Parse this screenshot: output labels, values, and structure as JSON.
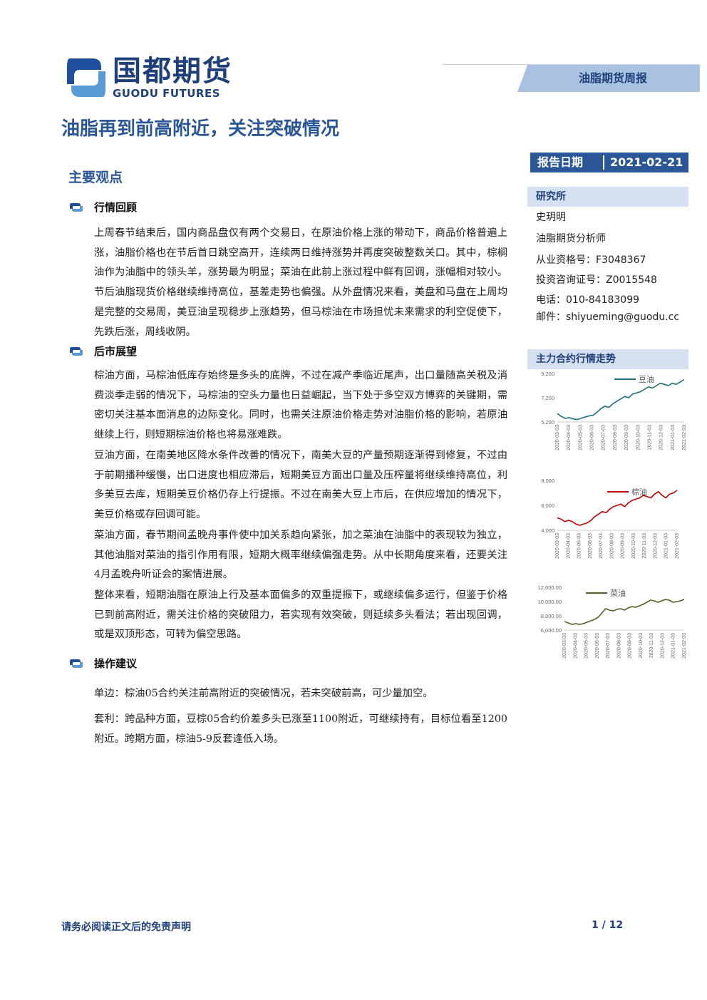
{
  "header": {
    "logo_cn": "国都期货",
    "logo_en": "GUODU FUTURES",
    "tag": "油脂期货周报"
  },
  "title": "油脂再到前高附近，关注突破情况",
  "report_date": {
    "label": "报告日期",
    "value": "2021-02-21"
  },
  "sidebar": {
    "institute_label": "研究所",
    "lines": [
      "史玥明",
      "油脂期货分析师",
      "从业资格号：F3048367",
      "投资咨询证号：Z0015548",
      "电话：010-84183099",
      "邮件：shiyueming@guodu.cc"
    ],
    "charts_label": "主力合约行情走势"
  },
  "main": {
    "section_title": "主要观点",
    "sections": [
      {
        "heading": "行情回顾",
        "paragraphs": [
          "上周春节结束后，国内商品盘仅有两个交易日，在原油价格上涨的带动下，商品价格普遍上涨，油脂价格也在节后首日跳空高开，连续两日维持涨势并再度突破整数关口。其中，棕榈油作为油脂中的领头羊，涨势最为明显；菜油在此前上涨过程中鲜有回调，涨幅相对较小。节后油脂现货价格继续维持高位，基差走势也偏强。从外盘情况来看，美盘和马盘在上周均是完整的交易周，美豆油呈现稳步上涨趋势，但马棕油在市场担忧未来需求的利空促使下，先跌后涨，周线收阴。"
        ]
      },
      {
        "heading": "后市展望",
        "paragraphs": [
          "棕油方面，马棕油低库存始终是多头的底牌，不过在减产季临近尾声，出口量随高关税及消费淡季走弱的情况下，马棕油的空头力量也日益崛起，当下处于多空双方博弈的关键期，需密切关注基本面消息的边际变化。同时，也需关注原油价格走势对油脂价格的影响，若原油继续上行，则短期棕油价格也将易涨难跌。",
          "豆油方面，在南美地区降水条件改善的情况下，南美大豆的产量预期逐渐得到修复，不过由于前期播种缓慢，出口进度也相应滞后，短期美豆方面出口量及压榨量将继续维持高位，利多美豆去库，短期美豆价格仍存上行提振。不过在南美大豆上市后，在供应增加的情况下，美豆价格或存回调可能。",
          "菜油方面，春节期间孟晚舟事件使中加关系趋向紧张，加之菜油在油脂中的表现较为独立，其他油脂对菜油的指引作用有限，短期大概率继续偏强走势。从中长期角度来看，还要关注4月孟晚舟听证会的案情进展。",
          "整体来看，短期油脂在原油上行及基本面偏多的双重提振下，或继续偏多运行，但鉴于价格已到前高附近，需关注价格的突破阻力，若实现有效突破，则延续多头看法；若出现回调，或是双顶形态，可转为偏空思路。"
        ]
      },
      {
        "heading": "操作建议",
        "paragraphs": [
          "单边：棕油05合约关注前高附近的突破情况，若未突破前高，可少量加空。",
          "套利：跨品种方面，豆棕05合约价差多头已涨至1100附近，可继续持有，目标位看至1200附近。跨期方面，棕油5-9反套逢低入场。"
        ]
      }
    ]
  },
  "chart_data": [
    {
      "type": "line",
      "series": [
        {
          "name": "豆油",
          "color": "#1f6f7a"
        }
      ],
      "x_ticks": [
        "2020-03-03",
        "2020-04-03",
        "2020-05-03",
        "2020-06-03",
        "2020-07-03",
        "2020-08-03",
        "2020-09-03",
        "2020-10-03",
        "2020-11-03",
        "2020-12-03",
        "2021-01-03",
        "2021-02-03"
      ],
      "y_ticks": [
        "9,200",
        "7,200",
        "5,200"
      ],
      "ylim": [
        5200,
        9200
      ],
      "values": [
        5900,
        5650,
        5500,
        5550,
        5450,
        5400,
        5500,
        5600,
        5700,
        5750,
        6000,
        6300,
        6500,
        6400,
        6700,
        6900,
        7100,
        7300,
        7200,
        7500,
        7600,
        7700,
        7900,
        8100,
        8000,
        8200,
        8400,
        8300,
        8200,
        8400,
        8300,
        8500,
        8700
      ]
    },
    {
      "type": "line",
      "series": [
        {
          "name": "棕油",
          "color": "#c00000"
        }
      ],
      "x_ticks": [
        "2020-03-03",
        "2020-04-03",
        "2020-05-03",
        "2020-06-03",
        "2020-07-03",
        "2020-08-03",
        "2020-09-03",
        "2020-10-03",
        "2020-11-03",
        "2020-12-03",
        "2021-01-03",
        "2021-02-03"
      ],
      "y_ticks": [
        "8,000",
        "6,000",
        "4,000"
      ],
      "ylim": [
        4000,
        8000
      ],
      "values": [
        5000,
        4900,
        4700,
        4800,
        4700,
        4500,
        4400,
        4500,
        4600,
        4800,
        5100,
        5300,
        5500,
        5400,
        5700,
        5900,
        6000,
        6100,
        5900,
        6200,
        6400,
        6500,
        6600,
        6800,
        6700,
        6600,
        6900,
        7100,
        6800,
        6600,
        6900,
        7000,
        7200
      ]
    },
    {
      "type": "line",
      "series": [
        {
          "name": "菜油",
          "color": "#4f6228"
        }
      ],
      "x_ticks": [
        "2020-03-03",
        "2020-04-03",
        "2020-05-03",
        "2020-06-03",
        "2020-07-03",
        "2020-08-03",
        "2020-09-03",
        "2020-10-03",
        "2020-11-03",
        "2020-12-03",
        "2021-01-03",
        "2021-02-03"
      ],
      "y_ticks": [
        "12,000.00",
        "10,000.00",
        "8,000.00",
        "6,000.00"
      ],
      "ylim": [
        6000,
        12000
      ],
      "values": [
        7200,
        7000,
        6800,
        6900,
        6800,
        6900,
        7100,
        7300,
        7500,
        7800,
        8400,
        9000,
        8800,
        8700,
        8900,
        9000,
        8800,
        9100,
        9300,
        9200,
        9400,
        9600,
        9900,
        10200,
        10100,
        9900,
        10100,
        10300,
        10200,
        9900,
        10000,
        10100,
        10300
      ]
    }
  ],
  "footer": {
    "disclaimer": "请务必阅读正文后的免责声明",
    "page": "1 / 12"
  }
}
